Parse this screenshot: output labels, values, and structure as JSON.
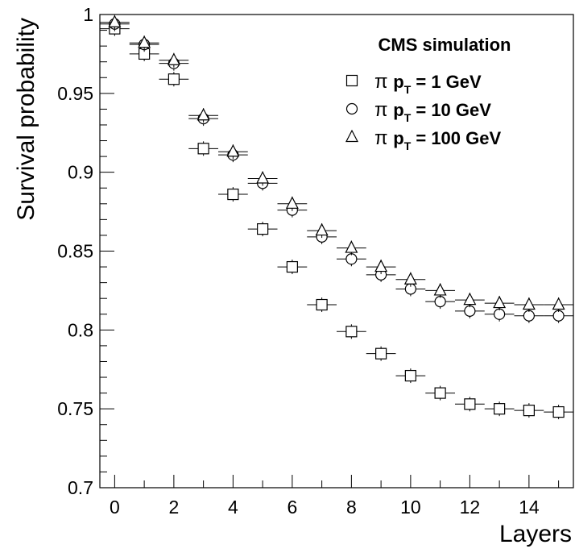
{
  "chart_data": {
    "type": "scatter",
    "title": "CMS simulation",
    "xlabel": "Layers",
    "ylabel": "Survival probability",
    "xlim": [
      -0.5,
      15.5
    ],
    "ylim": [
      0.7,
      1.0
    ],
    "x_ticks": [
      0,
      2,
      4,
      6,
      8,
      10,
      12,
      14
    ],
    "x_tick_labels": [
      "0",
      "2",
      "4",
      "6",
      "8",
      "10",
      "12",
      "14"
    ],
    "y_ticks": [
      0.7,
      0.75,
      0.8,
      0.85,
      0.9,
      0.95,
      1.0
    ],
    "y_tick_labels": [
      "0.7",
      "0.75",
      "0.8",
      "0.85",
      "0.9",
      "0.95",
      "1"
    ],
    "x": [
      0,
      1,
      2,
      3,
      4,
      5,
      6,
      7,
      8,
      9,
      10,
      11,
      12,
      13,
      14,
      15
    ],
    "legend_position": "top-right",
    "series": [
      {
        "name": "π p_T = 1 GeV",
        "legend_parts": {
          "pi": "π",
          "p": "p",
          "sub": "T",
          "rest": " = 1 GeV"
        },
        "marker": "square",
        "values": [
          0.991,
          0.975,
          0.959,
          0.915,
          0.886,
          0.864,
          0.84,
          0.816,
          0.799,
          0.785,
          0.771,
          0.76,
          0.753,
          0.75,
          0.749,
          0.748
        ]
      },
      {
        "name": "π p_T = 10 GeV",
        "legend_parts": {
          "pi": "π",
          "p": "p",
          "sub": "T",
          "rest": " = 10 GeV"
        },
        "marker": "circle",
        "values": [
          0.994,
          0.981,
          0.969,
          0.934,
          0.911,
          0.893,
          0.876,
          0.859,
          0.845,
          0.835,
          0.826,
          0.818,
          0.812,
          0.81,
          0.809,
          0.809
        ]
      },
      {
        "name": "π p_T = 100 GeV",
        "legend_parts": {
          "pi": "π",
          "p": "p",
          "sub": "T",
          "rest": " = 100 GeV"
        },
        "marker": "triangle",
        "values": [
          0.995,
          0.982,
          0.971,
          0.936,
          0.913,
          0.896,
          0.88,
          0.863,
          0.852,
          0.84,
          0.832,
          0.825,
          0.819,
          0.817,
          0.816,
          0.816
        ]
      }
    ]
  }
}
